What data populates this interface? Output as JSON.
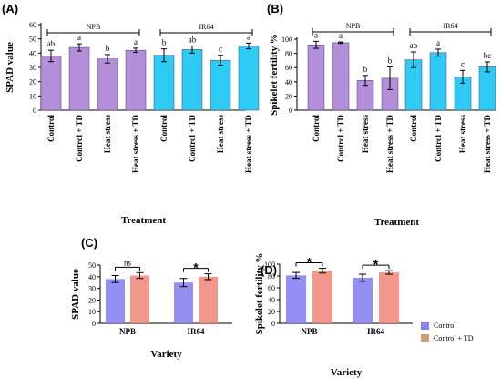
{
  "colors": {
    "purple": "#b38fd9",
    "cyan": "#2ecbf5",
    "blue": "#8a82f2",
    "salmon": "#f08c80",
    "legend_brown": "#c9a07a",
    "axis": "#000000"
  },
  "chart_data": [
    {
      "panel": "(A)",
      "type": "bar",
      "ylabel": "SPAD value",
      "xlabel": "Treatment",
      "ylim": [
        0,
        60
      ],
      "yticks": [
        0,
        10,
        20,
        30,
        40,
        50,
        60
      ],
      "groups": [
        {
          "name": "NPB",
          "color": "purple",
          "categories": [
            "Control",
            "Control + TD",
            "Heat stress",
            "Heat stress + TD"
          ],
          "values": [
            38,
            44,
            36,
            42
          ],
          "errors": [
            4,
            2.5,
            3,
            1.5
          ],
          "letters": [
            "ab",
            "a",
            "b",
            "a"
          ]
        },
        {
          "name": "IR64",
          "color": "cyan",
          "categories": [
            "Control",
            "Control + TD",
            "Heat stress",
            "Heat stress + TD"
          ],
          "values": [
            38.5,
            42.5,
            35,
            45
          ],
          "errors": [
            4.5,
            2.5,
            3.5,
            2
          ],
          "letters": [
            "b",
            "ab",
            "c",
            "a"
          ]
        }
      ]
    },
    {
      "panel": "(B)",
      "type": "bar",
      "ylabel": "Spikelet fertility %",
      "xlabel": "Treatment",
      "ylim": [
        0,
        100
      ],
      "yticks": [
        0,
        20,
        40,
        60,
        80,
        100
      ],
      "groups": [
        {
          "name": "NPB",
          "color": "purple",
          "categories": [
            "Control",
            "Control + TD",
            "Heat stress",
            "Heat stress + TD"
          ],
          "values": [
            92,
            95,
            42,
            45
          ],
          "errors": [
            5,
            1,
            7,
            16
          ],
          "letters": [
            "a",
            "a",
            "b",
            "b"
          ]
        },
        {
          "name": "IR64",
          "color": "cyan",
          "categories": [
            "Control",
            "Control + TD",
            "Heat stress",
            "Heat stress + TD"
          ],
          "values": [
            71,
            81,
            47,
            61
          ],
          "errors": [
            11,
            5,
            9,
            7
          ],
          "letters": [
            "ab",
            "a",
            "c",
            "bc"
          ]
        }
      ]
    },
    {
      "panel": "(C)",
      "type": "bar",
      "ylabel": "SPAD value",
      "xlabel": "Variety",
      "ylim": [
        0,
        50
      ],
      "yticks": [
        0,
        10,
        20,
        30,
        40,
        50
      ],
      "categories": [
        "NPB",
        "IR64"
      ],
      "series": [
        {
          "name": "Control",
          "color": "blue",
          "values": [
            38,
            35
          ],
          "errors": [
            3,
            3.5
          ]
        },
        {
          "name": "Control + TD",
          "color": "salmon",
          "values": [
            41,
            40
          ],
          "errors": [
            2.5,
            2.5
          ]
        }
      ],
      "significance": [
        "ns",
        "*"
      ]
    },
    {
      "panel": "(D)",
      "type": "bar",
      "ylabel": "Spikelet fertility %",
      "xlabel": "Variety",
      "ylim": [
        0,
        100
      ],
      "yticks": [
        0,
        20,
        40,
        60,
        80,
        100
      ],
      "categories": [
        "NPB",
        "IR64"
      ],
      "series": [
        {
          "name": "Control",
          "color": "blue",
          "values": [
            81,
            77
          ],
          "errors": [
            5,
            6
          ]
        },
        {
          "name": "Control + TD",
          "color": "salmon",
          "values": [
            89,
            86
          ],
          "errors": [
            4,
            3
          ]
        }
      ],
      "significance": [
        "*",
        "*"
      ],
      "legend": {
        "position": "right",
        "entries": [
          {
            "label": "Control",
            "color": "blue"
          },
          {
            "label": "Control + TD",
            "color": "legend_brown"
          }
        ]
      }
    }
  ]
}
